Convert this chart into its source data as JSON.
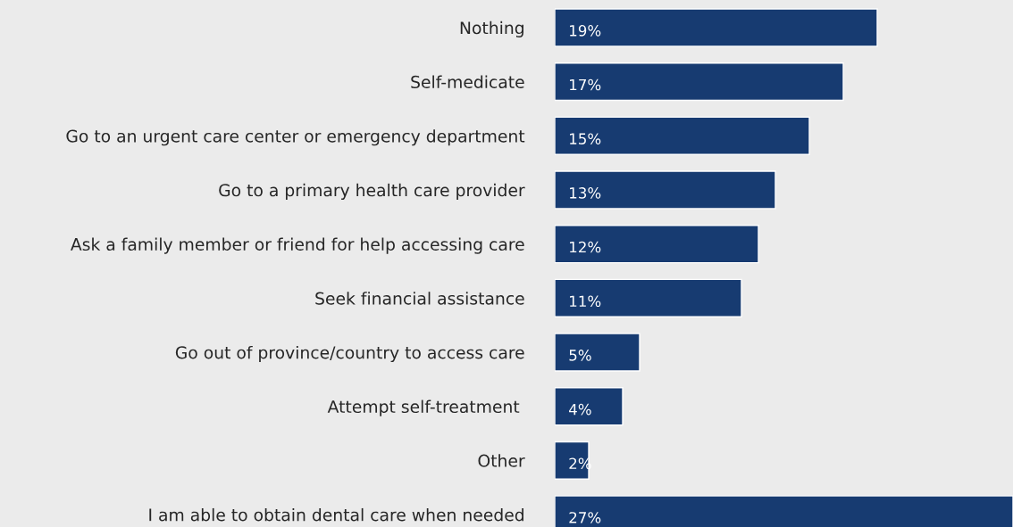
{
  "chart_data": {
    "type": "bar",
    "orientation": "horizontal",
    "categories": [
      "Nothing",
      "Self-medicate",
      "Go to an urgent care center or emergency department",
      "Go to a primary health care provider",
      "Ask a family member or friend for help accessing care",
      "Seek financial assistance",
      "Go out of province/country to access care",
      "Attempt self-treatment ",
      "Other",
      "I am able to obtain dental care when needed"
    ],
    "values": [
      19,
      17,
      15,
      13,
      12,
      11,
      5,
      4,
      2,
      27
    ],
    "value_labels": [
      "19%",
      "17%",
      "15%",
      "13%",
      "12%",
      "11%",
      "5%",
      "4%",
      "2%",
      "27%"
    ],
    "color": "#173b71",
    "grid": false,
    "legend": false
  }
}
